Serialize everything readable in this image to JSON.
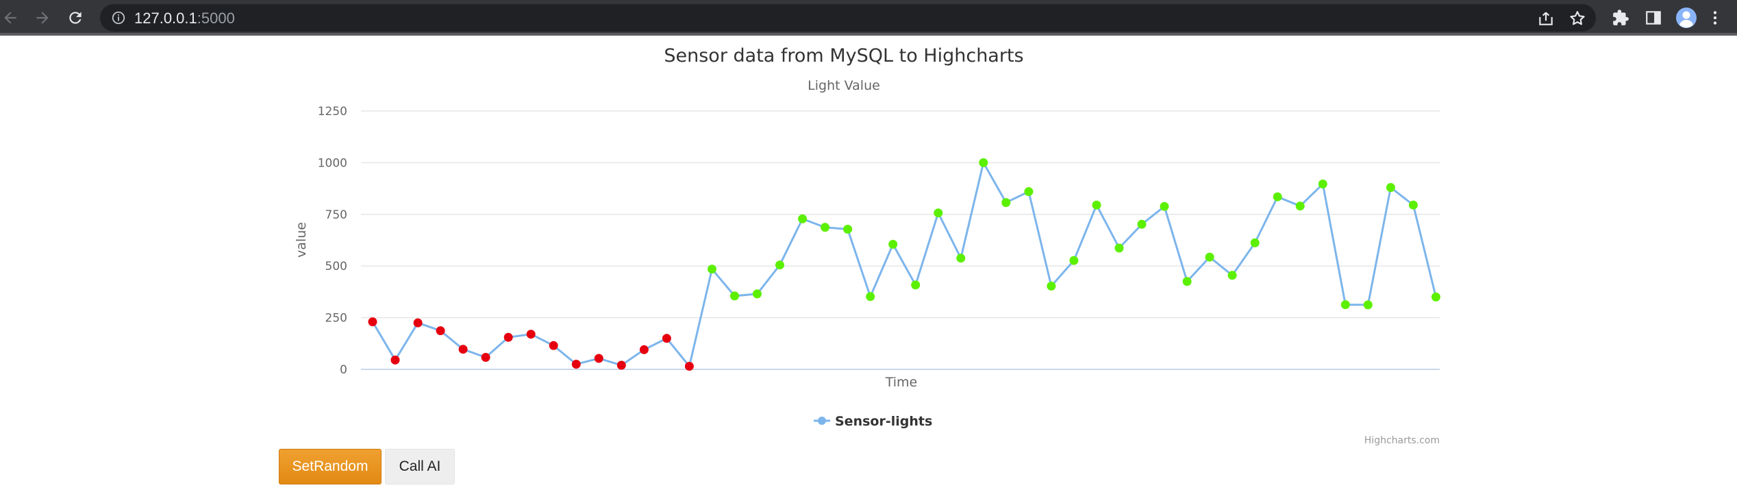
{
  "browser": {
    "url_host": "127.0.0.1",
    "url_port": ":5000"
  },
  "chart_data": {
    "type": "line",
    "title": "Sensor data from MySQL to Highcharts",
    "subtitle": "Light Value",
    "xlabel": "Time",
    "ylabel": "value",
    "ylim": [
      0,
      1250
    ],
    "yticks": [
      0,
      250,
      500,
      750,
      1000,
      1250
    ],
    "grid": true,
    "legend": "bottom-center",
    "credits": "Highcharts.com",
    "threshold": 300,
    "colors": {
      "line": "#7cb5ec",
      "low_marker": "#e6000f",
      "high_marker": "#5cf000",
      "grid": "#e6e6e6",
      "axis": "#ccd6eb"
    },
    "series": [
      {
        "name": "Sensor-lights",
        "values": [
          230,
          45,
          225,
          187,
          97,
          58,
          155,
          170,
          115,
          25,
          53,
          20,
          95,
          150,
          15,
          485,
          355,
          365,
          505,
          728,
          687,
          678,
          352,
          605,
          408,
          757,
          538,
          1000,
          807,
          860,
          403,
          527,
          795,
          587,
          702,
          788,
          425,
          543,
          455,
          612,
          835,
          790,
          897,
          313,
          312,
          880,
          795,
          350
        ]
      }
    ]
  },
  "controls": {
    "set_random_label": "SetRandom",
    "call_ai_label": "Call AI"
  }
}
